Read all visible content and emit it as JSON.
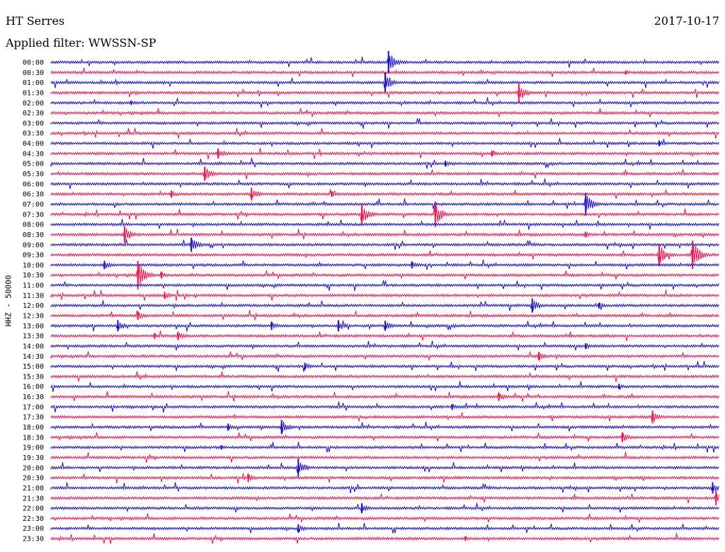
{
  "header": {
    "station": "HT Serres",
    "date": "2017-10-17",
    "filter": "Applied filter: WWSSN-SP"
  },
  "chart_data": {
    "type": "line",
    "title": "HT Serres",
    "subtitle": "Applied filter: WWSSN-SP",
    "ylabel": "HHZ - 50000",
    "grid": false,
    "colors": [
      "#1a0fd6",
      "#f5134f"
    ],
    "rows": [
      {
        "label": "00:00",
        "events": [
          {
            "pos": 0.505,
            "amp": 16
          }
        ]
      },
      {
        "label": "00:30",
        "events": [
          {
            "pos": 0.86,
            "amp": 3
          }
        ]
      },
      {
        "label": "01:00",
        "events": [
          {
            "pos": 0.5,
            "amp": 14
          }
        ]
      },
      {
        "label": "01:30",
        "events": [
          {
            "pos": 0.7,
            "amp": 13
          }
        ]
      },
      {
        "label": "02:00",
        "events": [
          {
            "pos": 0.12,
            "amp": 3
          }
        ]
      },
      {
        "label": "02:30",
        "events": []
      },
      {
        "label": "03:00",
        "events": []
      },
      {
        "label": "03:30",
        "events": []
      },
      {
        "label": "04:00",
        "events": [
          {
            "pos": 0.91,
            "amp": 4
          }
        ]
      },
      {
        "label": "04:30",
        "events": [
          {
            "pos": 0.25,
            "amp": 7
          },
          {
            "pos": 0.66,
            "amp": 4
          }
        ]
      },
      {
        "label": "05:00",
        "events": [
          {
            "pos": 0.59,
            "amp": 4
          }
        ]
      },
      {
        "label": "05:30",
        "events": [
          {
            "pos": 0.23,
            "amp": 10
          }
        ]
      },
      {
        "label": "06:00",
        "events": []
      },
      {
        "label": "06:30",
        "events": [
          {
            "pos": 0.18,
            "amp": 5
          },
          {
            "pos": 0.3,
            "amp": 9
          },
          {
            "pos": 0.42,
            "amp": 4
          }
        ]
      },
      {
        "label": "07:00",
        "events": [
          {
            "pos": 0.8,
            "amp": 16
          }
        ]
      },
      {
        "label": "07:30",
        "events": [
          {
            "pos": 0.465,
            "amp": 15
          },
          {
            "pos": 0.575,
            "amp": 18
          }
        ]
      },
      {
        "label": "08:00",
        "events": []
      },
      {
        "label": "08:30",
        "events": [
          {
            "pos": 0.11,
            "amp": 12
          },
          {
            "pos": 0.8,
            "amp": 4
          }
        ]
      },
      {
        "label": "09:00",
        "events": [
          {
            "pos": 0.21,
            "amp": 10
          }
        ]
      },
      {
        "label": "09:30",
        "events": [
          {
            "pos": 0.91,
            "amp": 16
          },
          {
            "pos": 0.96,
            "amp": 20
          }
        ]
      },
      {
        "label": "10:00",
        "events": [
          {
            "pos": 0.08,
            "amp": 6
          },
          {
            "pos": 0.54,
            "amp": 5
          }
        ]
      },
      {
        "label": "10:30",
        "events": [
          {
            "pos": 0.13,
            "amp": 20
          },
          {
            "pos": 0.165,
            "amp": 5
          }
        ]
      },
      {
        "label": "11:00",
        "events": []
      },
      {
        "label": "11:30",
        "events": [
          {
            "pos": 0.17,
            "amp": 5
          }
        ]
      },
      {
        "label": "12:00",
        "events": [
          {
            "pos": 0.72,
            "amp": 10
          },
          {
            "pos": 0.82,
            "amp": 4
          }
        ]
      },
      {
        "label": "12:30",
        "events": [
          {
            "pos": 0.13,
            "amp": 6
          }
        ]
      },
      {
        "label": "13:00",
        "events": [
          {
            "pos": 0.1,
            "amp": 8
          },
          {
            "pos": 0.33,
            "amp": 6
          },
          {
            "pos": 0.43,
            "amp": 8
          },
          {
            "pos": 0.5,
            "amp": 7
          }
        ]
      },
      {
        "label": "13:30",
        "events": [
          {
            "pos": 0.19,
            "amp": 6
          },
          {
            "pos": 0.155,
            "amp": 4
          }
        ]
      },
      {
        "label": "14:00",
        "events": [
          {
            "pos": 0.8,
            "amp": 4
          }
        ]
      },
      {
        "label": "14:30",
        "events": [
          {
            "pos": 0.73,
            "amp": 6
          }
        ]
      },
      {
        "label": "15:00",
        "events": [
          {
            "pos": 0.38,
            "amp": 5
          }
        ]
      },
      {
        "label": "15:30",
        "events": []
      },
      {
        "label": "16:00",
        "events": [
          {
            "pos": 0.85,
            "amp": 4
          }
        ]
      },
      {
        "label": "16:30",
        "events": [
          {
            "pos": 0.67,
            "amp": 6
          }
        ]
      },
      {
        "label": "17:00",
        "events": [
          {
            "pos": 0.6,
            "amp": 4
          }
        ]
      },
      {
        "label": "17:30",
        "events": [
          {
            "pos": 0.9,
            "amp": 9
          }
        ]
      },
      {
        "label": "18:00",
        "events": [
          {
            "pos": 0.265,
            "amp": 5
          },
          {
            "pos": 0.345,
            "amp": 10
          }
        ]
      },
      {
        "label": "18:30",
        "events": [
          {
            "pos": 0.855,
            "amp": 7
          }
        ]
      },
      {
        "label": "19:00",
        "events": [
          {
            "pos": 0.255,
            "amp": 3
          }
        ]
      },
      {
        "label": "19:30",
        "events": []
      },
      {
        "label": "20:00",
        "events": [
          {
            "pos": 0.37,
            "amp": 13
          }
        ]
      },
      {
        "label": "20:30",
        "events": [
          {
            "pos": 0.295,
            "amp": 6
          }
        ]
      },
      {
        "label": "21:00",
        "events": [
          {
            "pos": 0.99,
            "amp": 8
          }
        ]
      },
      {
        "label": "21:30",
        "events": [
          {
            "pos": 0.995,
            "amp": 10
          }
        ]
      },
      {
        "label": "22:00",
        "events": [
          {
            "pos": 0.465,
            "amp": 7
          }
        ]
      },
      {
        "label": "22:30",
        "events": []
      },
      {
        "label": "23:00",
        "events": [
          {
            "pos": 0.37,
            "amp": 6
          }
        ]
      },
      {
        "label": "23:30",
        "events": [
          {
            "pos": 0.62,
            "amp": 3
          }
        ]
      }
    ]
  }
}
